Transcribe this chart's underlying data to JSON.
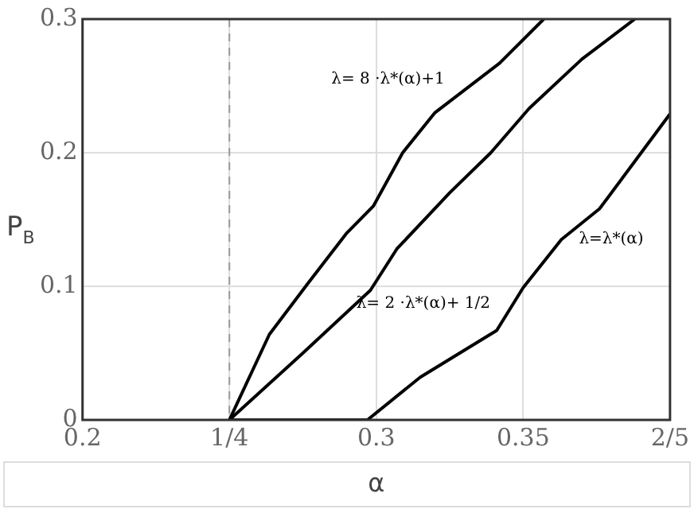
{
  "chart_data": {
    "type": "line",
    "xlabel": "α",
    "ylabel": "P$_{B}$",
    "xlim": [
      0.2,
      0.4
    ],
    "ylim": [
      0,
      0.3
    ],
    "xticks": [
      0.2,
      {
        "value": 0.25,
        "label": "1/4"
      },
      0.3,
      0.35,
      {
        "value": 0.4,
        "label": "2/5"
      }
    ],
    "yticks": [
      0,
      0.1,
      0.2,
      0.3
    ],
    "grid": true,
    "legend": false,
    "marker": "none",
    "line_style": "solid",
    "series": [
      {
        "name": "λ= 8 ·λ*(α)+1",
        "color": "#000000",
        "x": [
          0.25,
          0.2636,
          0.277,
          0.29,
          0.299,
          0.309,
          0.32,
          0.342,
          0.357
        ],
        "values": [
          0,
          0.064,
          0.103,
          0.14,
          0.16,
          0.2,
          0.23,
          0.267,
          0.3
        ]
      },
      {
        "name": "λ= 2 ·λ*(α)+ 1/2",
        "color": "#000000",
        "x": [
          0.25,
          0.275,
          0.298,
          0.307,
          0.325,
          0.339,
          0.352,
          0.37,
          0.388
        ],
        "values": [
          0,
          0.05,
          0.097,
          0.128,
          0.17,
          0.2,
          0.233,
          0.27,
          0.3
        ]
      },
      {
        "name": "λ=λ*(α)",
        "color": "#000000",
        "x": [
          0.25,
          0.297,
          0.315,
          0.341,
          0.35,
          0.363,
          0.376,
          0.4
        ],
        "values": [
          0,
          0,
          0.032,
          0.067,
          0.099,
          0.135,
          0.158,
          0.229
        ]
      }
    ],
    "ref_lines": [
      {
        "axis": "x",
        "value": 0.25,
        "color": "#999999",
        "line_style": "dashed"
      }
    ]
  }
}
